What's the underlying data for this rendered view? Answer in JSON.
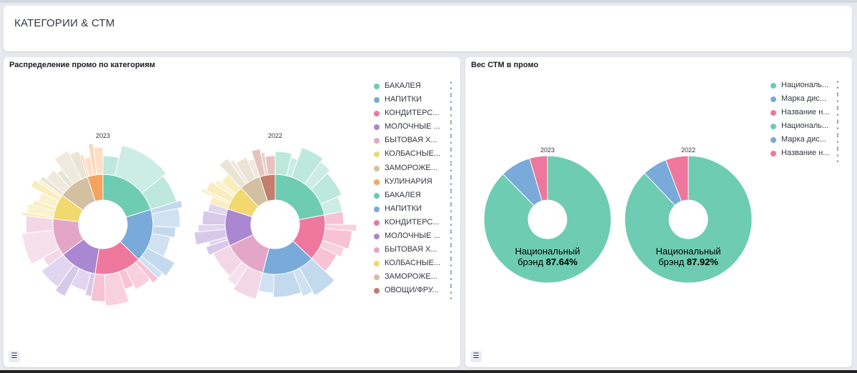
{
  "header": {
    "title": "КАТЕГОРИИ & СТМ"
  },
  "left_panel": {
    "title": "Распределение промо по категориям",
    "legend": [
      {
        "label": "БАКАЛЕЯ",
        "color": "#6dccb1"
      },
      {
        "label": "НАПИТКИ",
        "color": "#79aad9"
      },
      {
        "label": "КОНДИТЕРС...",
        "color": "#ee789d"
      },
      {
        "label": "МОЛОЧНЫЕ ...",
        "color": "#a987d1"
      },
      {
        "label": "БЫТОВАЯ Х...",
        "color": "#e4a6c7"
      },
      {
        "label": "КОЛБАСНЫЕ...",
        "color": "#f1d86f"
      },
      {
        "label": "ЗАМОРОЖЕ...",
        "color": "#d2c0a0"
      },
      {
        "label": "КУЛИНАРИЯ",
        "color": "#f5a35c"
      },
      {
        "label": "БАКАЛЕЯ",
        "color": "#6dccb1"
      },
      {
        "label": "НАПИТКИ",
        "color": "#79aad9"
      },
      {
        "label": "КОНДИТЕРС...",
        "color": "#ee789d"
      },
      {
        "label": "МОЛОЧНЫЕ ...",
        "color": "#a987d1"
      },
      {
        "label": "БЫТОВАЯ Х...",
        "color": "#e4a6c7"
      },
      {
        "label": "КОЛБАСНЫЕ...",
        "color": "#f1d86f"
      },
      {
        "label": "ЗАМОРОЖЕ...",
        "color": "#d2c0a0"
      },
      {
        "label": "ОВОЩИ/ФРУ...",
        "color": "#c47c6c"
      }
    ]
  },
  "right_panel": {
    "title": "Вес СТМ в промо",
    "legend": [
      {
        "label": "Националь...",
        "color": "#6dccb1"
      },
      {
        "label": "Марка дис...",
        "color": "#79aad9"
      },
      {
        "label": "Название н...",
        "color": "#ee789d"
      },
      {
        "label": "Националь...",
        "color": "#6dccb1"
      },
      {
        "label": "Марка дис...",
        "color": "#79aad9"
      },
      {
        "label": "Название н...",
        "color": "#ee789d"
      }
    ]
  },
  "chart_data": [
    {
      "type": "pie",
      "title": "Распределение промо по категориям",
      "subtype": "sunburst",
      "pies": [
        {
          "label": "2023",
          "slices": [
            {
              "name": "БАКАЛЕЯ",
              "value": 20,
              "color": "#6dccb1"
            },
            {
              "name": "НАПИТКИ",
              "value": 17,
              "color": "#79aad9"
            },
            {
              "name": "КОНДИТЕРС...",
              "value": 15,
              "color": "#ee789d"
            },
            {
              "name": "МОЛОЧНЫЕ ...",
              "value": 12,
              "color": "#a987d1"
            },
            {
              "name": "БЫТОВАЯ Х...",
              "value": 12,
              "color": "#e4a6c7"
            },
            {
              "name": "КОЛБАСНЫЕ...",
              "value": 8,
              "color": "#f1d86f"
            },
            {
              "name": "ЗАМОРОЖЕ...",
              "value": 10,
              "color": "#d2c0a0"
            },
            {
              "name": "КУЛИНАРИЯ",
              "value": 5,
              "color": "#f5a35c"
            }
          ]
        },
        {
          "label": "2022",
          "slices": [
            {
              "name": "БАКАЛЕЯ",
              "value": 22,
              "color": "#6dccb1"
            },
            {
              "name": "КОНДИТЕРС...",
              "value": 15,
              "color": "#ee789d"
            },
            {
              "name": "НАПИТКИ",
              "value": 17,
              "color": "#79aad9"
            },
            {
              "name": "БЫТОВАЯ Х...",
              "value": 14,
              "color": "#e4a6c7"
            },
            {
              "name": "МОЛОЧНЫЕ ...",
              "value": 12,
              "color": "#a987d1"
            },
            {
              "name": "КОЛБАСНЫЕ...",
              "value": 8,
              "color": "#f1d86f"
            },
            {
              "name": "ЗАМОРОЖЕ...",
              "value": 7,
              "color": "#d2c0a0"
            },
            {
              "name": "ОВОЩИ/ФРУ...",
              "value": 5,
              "color": "#c47c6c"
            }
          ]
        }
      ]
    },
    {
      "type": "pie",
      "title": "Вес СТМ в промо",
      "pies": [
        {
          "label": "2023",
          "center_label": "Национальный брэнд",
          "center_value": "87.64%",
          "slices": [
            {
              "name": "Национальный брэнд",
              "value": 87.64,
              "color": "#6dccb1"
            },
            {
              "name": "Марка дис...",
              "value": 7.8,
              "color": "#79aad9"
            },
            {
              "name": "Название н...",
              "value": 4.56,
              "color": "#ee789d"
            }
          ]
        },
        {
          "label": "2022",
          "center_label": "Национальный брэнд",
          "center_value": "87.92%",
          "slices": [
            {
              "name": "Национальный брэнд",
              "value": 87.92,
              "color": "#6dccb1"
            },
            {
              "name": "Марка дис...",
              "value": 6.3,
              "color": "#79aad9"
            },
            {
              "name": "Название н...",
              "value": 5.78,
              "color": "#ee789d"
            }
          ]
        }
      ]
    }
  ]
}
